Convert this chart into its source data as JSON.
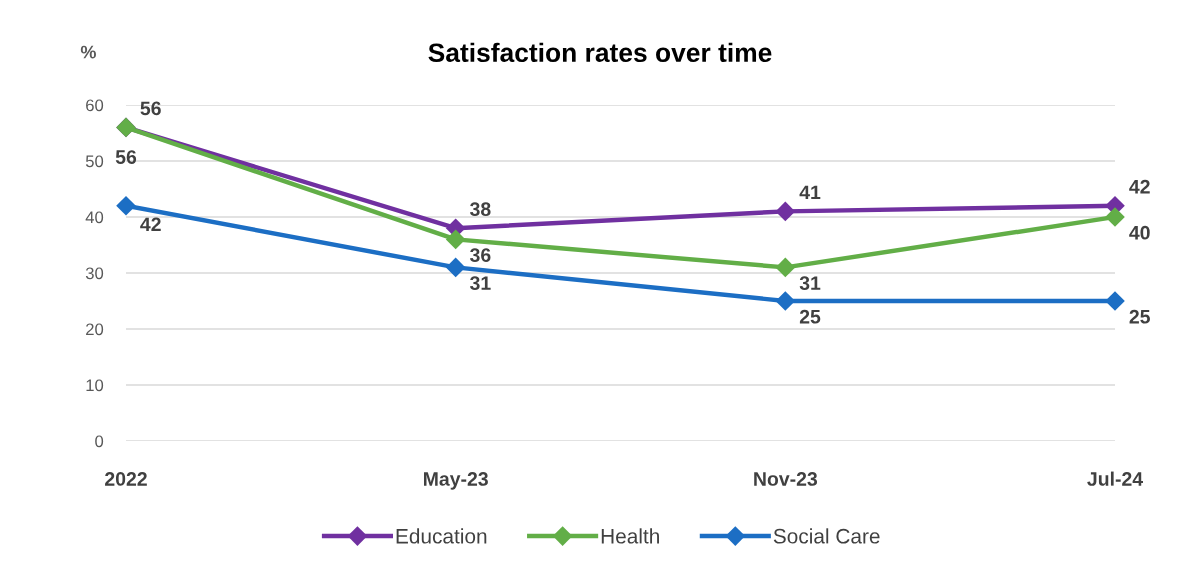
{
  "chart_data": {
    "type": "line",
    "title": "Satisfaction rates over time",
    "ylabel": "%",
    "categories": [
      "2022",
      "May-23",
      "Nov-23",
      "Jul-24"
    ],
    "series": [
      {
        "name": "Education",
        "color": "#7030a0",
        "values": [
          56,
          38,
          41,
          42
        ]
      },
      {
        "name": "Health",
        "color": "#62ae47",
        "values": [
          56,
          36,
          31,
          40
        ]
      },
      {
        "name": "Social Care",
        "color": "#1c6ec4",
        "values": [
          42,
          31,
          25,
          25
        ]
      }
    ],
    "ylim": [
      0,
      60
    ],
    "yticks": [
      0,
      10,
      20,
      30,
      40,
      50,
      60
    ],
    "grid": "y",
    "legend": "bottom",
    "marker": "diamond",
    "line_style": "solid",
    "data_labels": true
  }
}
